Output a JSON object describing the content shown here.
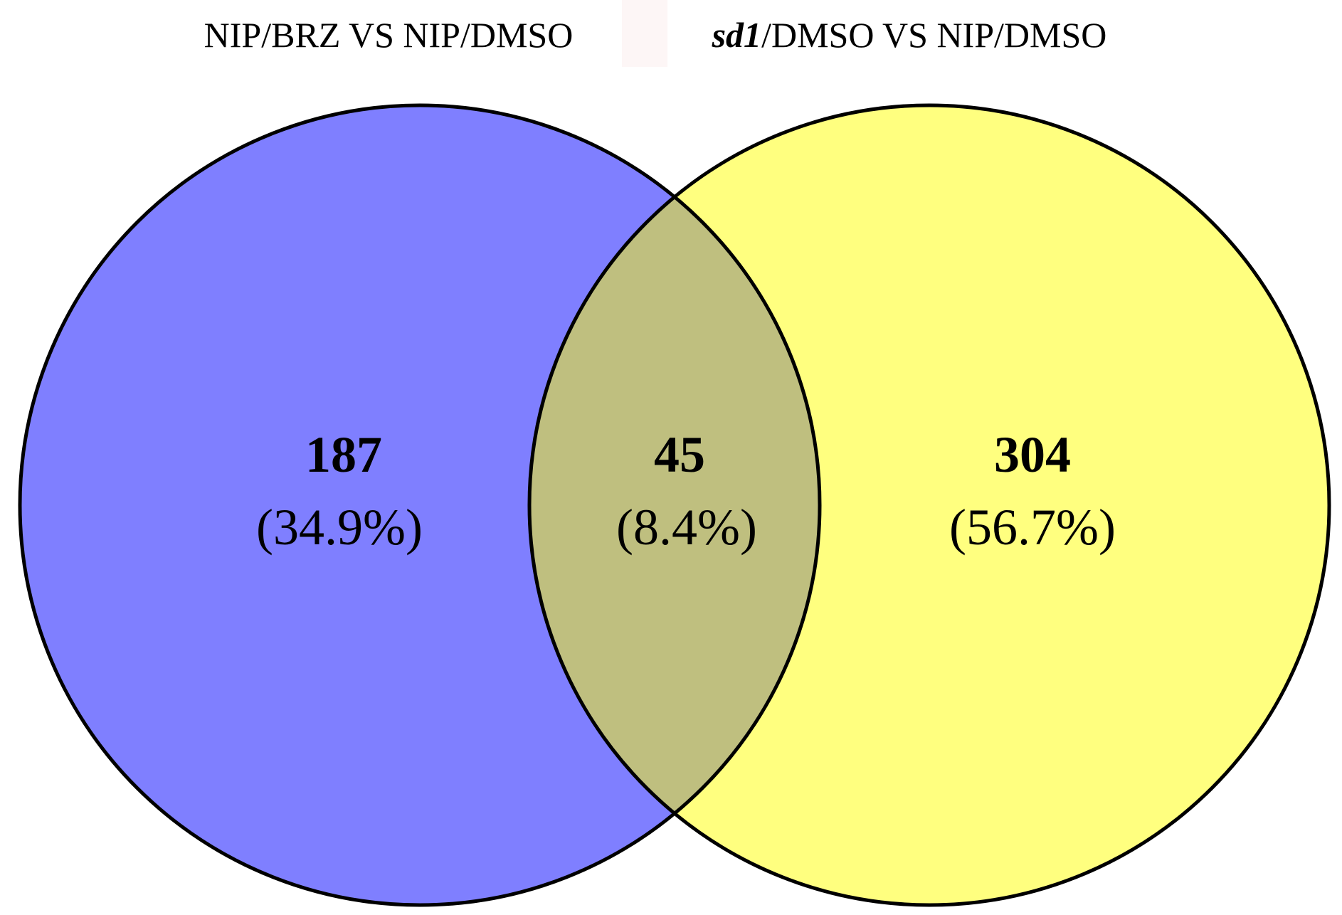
{
  "sets": [
    {
      "title_parts": [
        {
          "text": "NIP/BRZ VS NIP/DMSO",
          "italic": false
        }
      ],
      "color": "#7f7fff"
    },
    {
      "title_parts": [
        {
          "text": "sd1",
          "italic": true
        },
        {
          "text": "/DMSO VS NIP/DMSO",
          "italic": false
        }
      ],
      "color": "#ffff7f"
    }
  ],
  "overlap_color": "#bfbf7f",
  "outline_color": "#000000",
  "regions": {
    "left_only": {
      "count": "187",
      "percent": "(34.9%)"
    },
    "intersection": {
      "count": "45",
      "percent": "(8.4%)"
    },
    "right_only": {
      "count": "304",
      "percent": "(56.7%)"
    }
  }
}
